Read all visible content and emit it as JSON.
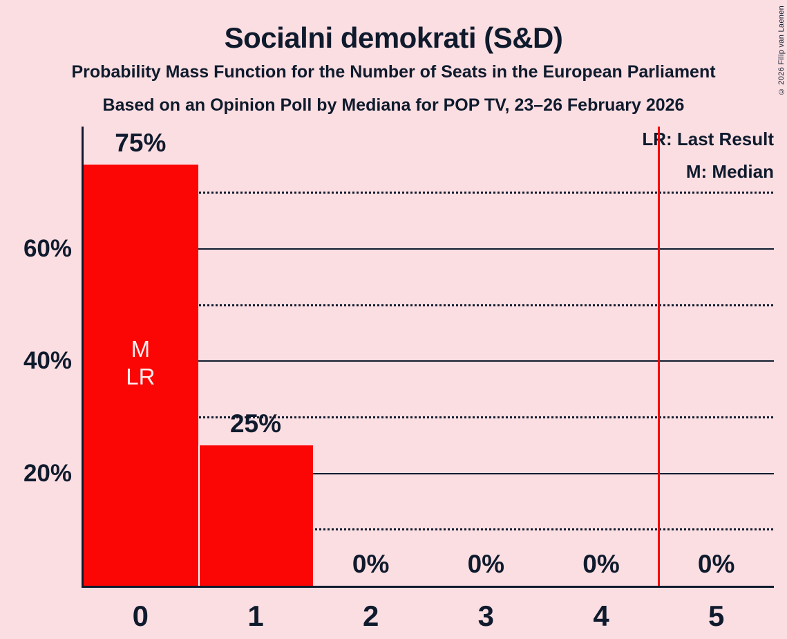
{
  "chart_data": {
    "type": "bar",
    "title": "Socialni demokrati (S&D)",
    "subtitle1": "Probability Mass Function for the Number of Seats in the European Parliament",
    "subtitle2": "Based on an Opinion Poll by Mediana for POP TV, 23–26 February 2026",
    "legend": [
      "LR: Last Result",
      "M: Median"
    ],
    "legend_position": "top-right",
    "categories": [
      "0",
      "1",
      "2",
      "3",
      "4",
      "5"
    ],
    "values": [
      75,
      25,
      0,
      0,
      0,
      0
    ],
    "value_labels": [
      "75%",
      "25%",
      "0%",
      "0%",
      "0%",
      "0%"
    ],
    "y_ticks": [
      {
        "pct": 20,
        "label": "20%"
      },
      {
        "pct": 40,
        "label": "40%"
      },
      {
        "pct": 60,
        "label": "60%"
      }
    ],
    "solid_gridlines_pct": [
      20,
      40,
      60
    ],
    "dotted_gridlines_pct": [
      10,
      30,
      50,
      70
    ],
    "ylim": [
      0,
      82
    ],
    "grid": true,
    "annotations": [
      {
        "category": 0,
        "lines": [
          "M",
          "LR"
        ]
      }
    ],
    "last_result_marker": {
      "seats": 4.5
    }
  },
  "copyright": "© 2026 Filip van Laenen",
  "colors": {
    "background": "#fbdee2",
    "bar": "#fb0505",
    "ink": "#0f1b2d",
    "marker": "#fb0505",
    "bar_label": "#fdedef",
    "bar_gap": "#ffffff"
  }
}
